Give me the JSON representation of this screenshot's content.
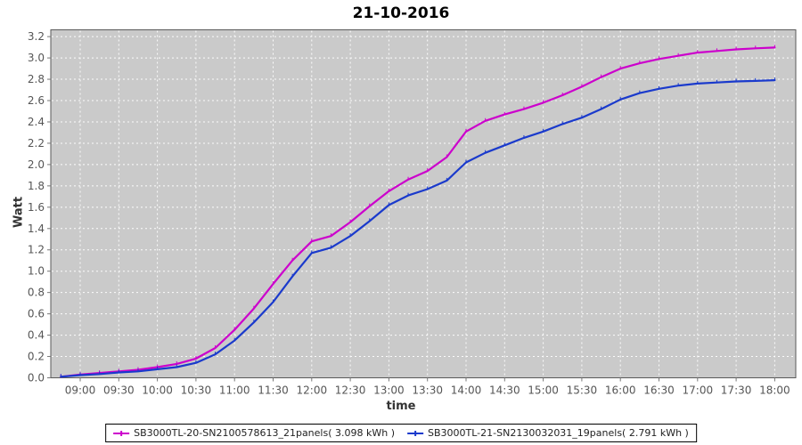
{
  "title": "21-10-2016",
  "chart_data": {
    "type": "line",
    "title": "21-10-2016",
    "xlabel": "time",
    "ylabel": "Watt",
    "ylim": [
      0.0,
      3.2
    ],
    "grid": true,
    "legend_position": "bottom-center",
    "plot_bg_color": "#cacaca",
    "grid_color": "#ffffff",
    "axis_text_color": "#555555",
    "y_ticks": [
      "0.0",
      "0.2",
      "0.4",
      "0.6",
      "0.8",
      "1.0",
      "1.2",
      "1.4",
      "1.6",
      "1.8",
      "2.0",
      "2.2",
      "2.4",
      "2.6",
      "2.8",
      "3.0",
      "3.2"
    ],
    "x_ticks": [
      "09:00",
      "09:30",
      "10:00",
      "10:30",
      "11:00",
      "11:30",
      "12:00",
      "12:30",
      "13:00",
      "13:30",
      "14:00",
      "14:30",
      "15:00",
      "15:30",
      "16:00",
      "16:30",
      "17:00",
      "17:30",
      "18:00"
    ],
    "x": [
      "08:45",
      "09:00",
      "09:15",
      "09:30",
      "09:45",
      "10:00",
      "10:15",
      "10:30",
      "10:45",
      "11:00",
      "11:15",
      "11:30",
      "11:45",
      "12:00",
      "12:15",
      "12:30",
      "12:45",
      "13:00",
      "13:15",
      "13:30",
      "13:45",
      "14:00",
      "14:15",
      "14:30",
      "14:45",
      "15:00",
      "15:15",
      "15:30",
      "15:45",
      "16:00",
      "16:15",
      "16:30",
      "16:45",
      "17:00",
      "17:15",
      "17:30",
      "17:45",
      "18:00"
    ],
    "series": [
      {
        "name": "SB3000TL-20-SN2100578613_21panels( 3.098 kWh )",
        "color": "#cc00cc",
        "values": [
          0.01,
          0.03,
          0.045,
          0.06,
          0.075,
          0.1,
          0.13,
          0.18,
          0.28,
          0.45,
          0.65,
          0.88,
          1.1,
          1.28,
          1.33,
          1.46,
          1.61,
          1.75,
          1.86,
          1.94,
          2.07,
          2.31,
          2.41,
          2.47,
          2.52,
          2.58,
          2.65,
          2.73,
          2.82,
          2.9,
          2.95,
          2.99,
          3.02,
          3.05,
          3.065,
          3.08,
          3.09,
          3.098
        ]
      },
      {
        "name": "SB3000TL-21-SN2130032031_19panels( 2.791 kWh )",
        "color": "#1a3acc",
        "values": [
          0.01,
          0.025,
          0.035,
          0.05,
          0.06,
          0.08,
          0.1,
          0.14,
          0.22,
          0.35,
          0.52,
          0.71,
          0.95,
          1.17,
          1.22,
          1.33,
          1.47,
          1.62,
          1.71,
          1.77,
          1.85,
          2.02,
          2.11,
          2.18,
          2.25,
          2.31,
          2.38,
          2.44,
          2.52,
          2.61,
          2.67,
          2.71,
          2.74,
          2.76,
          2.77,
          2.78,
          2.785,
          2.791
        ]
      }
    ]
  }
}
